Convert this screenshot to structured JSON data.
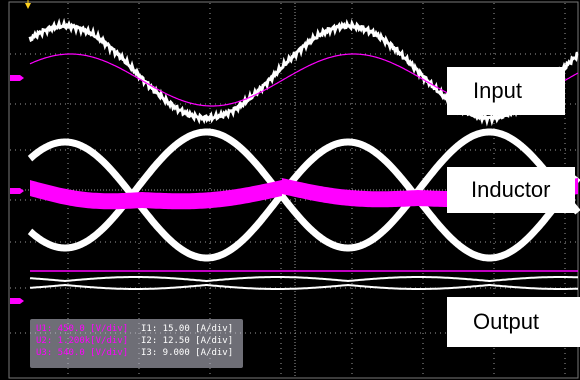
{
  "colors": {
    "background": "#000000",
    "grid": "#9a9a9a",
    "voltage_trace": "#ffffff",
    "current_trace": "#ff00ff",
    "marker": "#ff00ff",
    "trigger_marker": "#ffd21f"
  },
  "labels": {
    "input": "Input",
    "inductor": "Inductor",
    "output": "Output"
  },
  "readout": {
    "voltage": [
      {
        "text": "U1: 450.0 [V/div]"
      },
      {
        "text": "U2: 1.200k[V/div]"
      },
      {
        "text": "U3: 540.0 [V/div]"
      }
    ],
    "current": [
      {
        "text": "I1: 15.00 [A/div]"
      },
      {
        "text": "I2: 12.50 [A/div]"
      },
      {
        "text": "I3: 9.000 [A/div]"
      }
    ]
  }
}
